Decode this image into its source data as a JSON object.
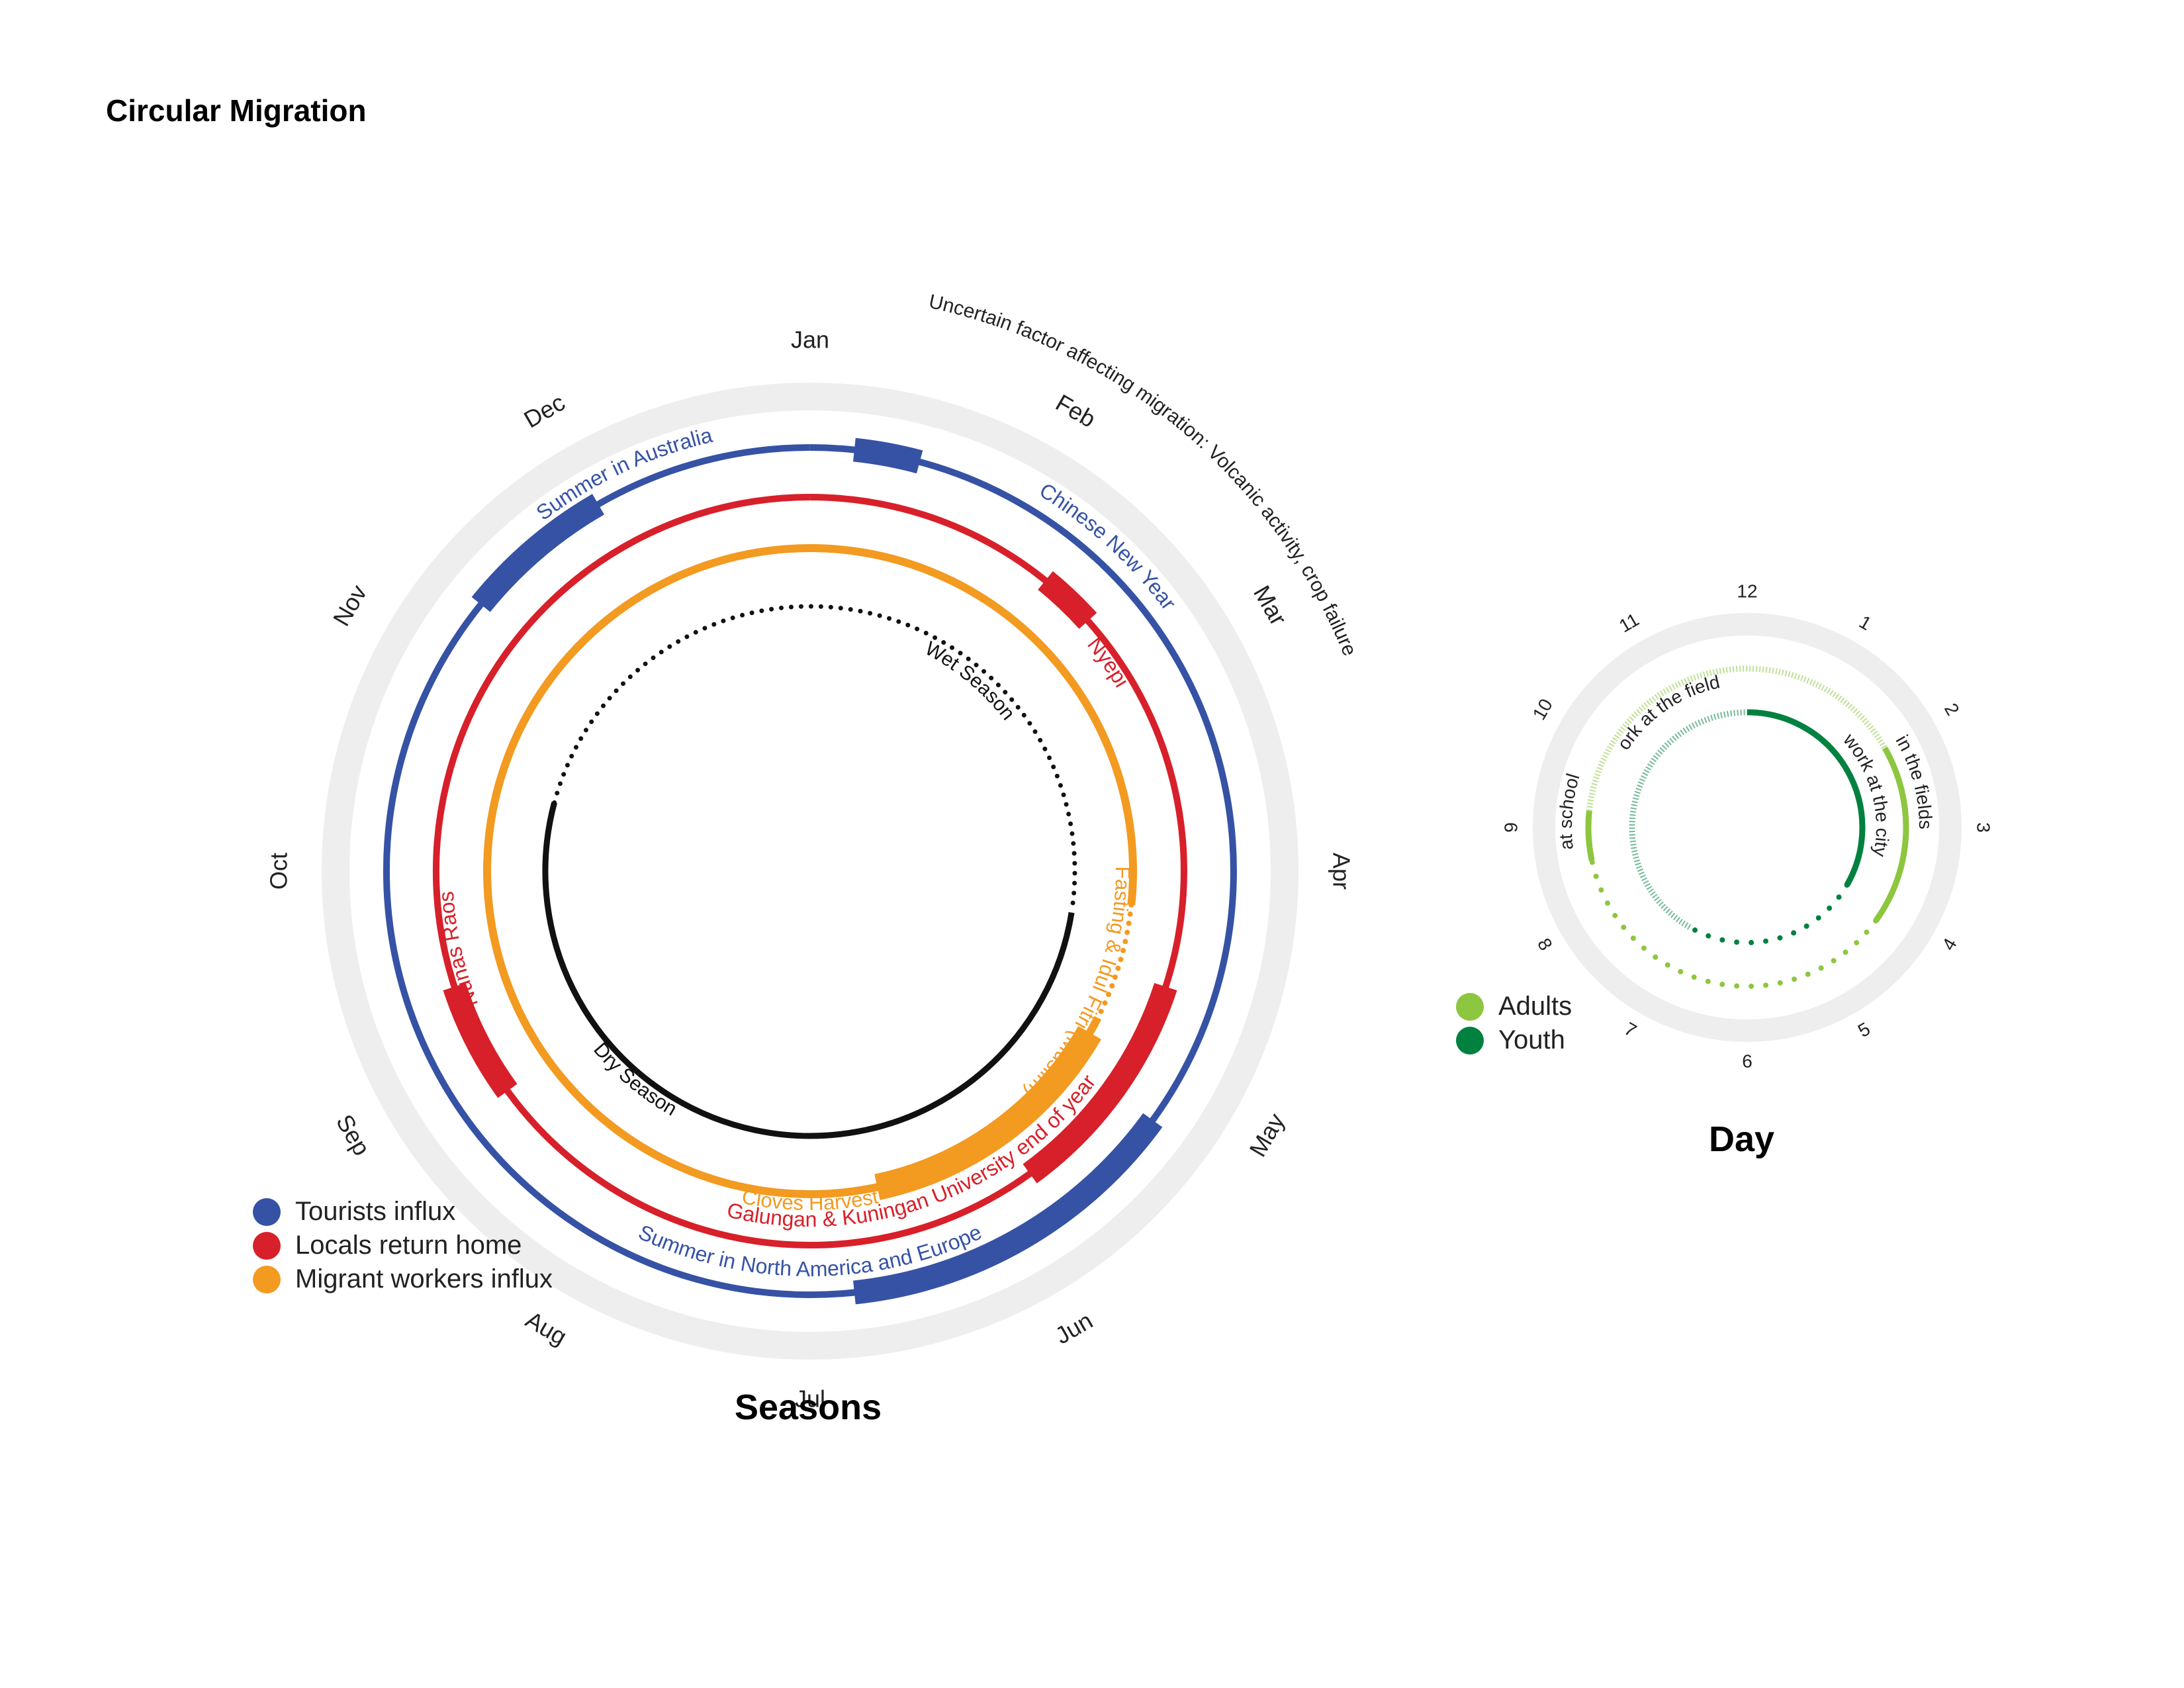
{
  "title": "Circular Migration",
  "chart_data": [
    {
      "type": "radial-calendar",
      "title": "Seasons",
      "months": [
        "Jan",
        "Feb",
        "Mar",
        "Apr",
        "May",
        "Jun",
        "Jul",
        "Aug",
        "Sep",
        "Oct",
        "Nov",
        "Dec"
      ],
      "outer_annotation": "Uncertain factor affecting migration: Volcanic activity, crop failure",
      "legend": [
        {
          "label": "Tourists influx",
          "color": "#3652A5"
        },
        {
          "label": "Locals return home",
          "color": "#D7202A"
        },
        {
          "label": "Migrant workers influx",
          "color": "#F39A21"
        }
      ],
      "series": [
        {
          "name": "Tourists influx",
          "color": "#3652A5",
          "events": [
            {
              "label": "Summer in Australia",
              "start_month": 11.3,
              "end_month": 12.0
            },
            {
              "label": "Chinese New Year",
              "start_month": 1.2,
              "end_month": 1.5
            },
            {
              "label": "Summer in North America and Europe",
              "start_month": 5.2,
              "end_month": 6.8
            }
          ]
        },
        {
          "name": "Locals return home",
          "color": "#D7202A",
          "events": [
            {
              "label": "Nyepi",
              "start_month": 2.3,
              "end_month": 2.6
            },
            {
              "label": "Nunas Raos",
              "start_month": 8.8,
              "end_month": 9.4
            },
            {
              "label": "Galungan & Kuningan University end of year",
              "start_month": 4.6,
              "end_month": 5.8
            }
          ]
        },
        {
          "name": "Migrant workers influx",
          "color": "#F39A21",
          "events": [
            {
              "label": "Cloves Harvest",
              "start_month": 5.0,
              "end_month": 6.6
            },
            {
              "label": "Fasting & Idul Fitri (Muslim)",
              "start_month": 4.2,
              "end_month": 4.9,
              "style": "dotted"
            }
          ]
        }
      ],
      "seasons": [
        {
          "label": "Wet Season",
          "start_month": 10.5,
          "end_month": 4.3,
          "style": "dotted"
        },
        {
          "label": "Dry Season",
          "start_month": 4.3,
          "end_month": 10.5,
          "style": "solid"
        }
      ]
    },
    {
      "type": "radial-clock",
      "title": "Day",
      "hours": [
        "12",
        "1",
        "2",
        "3",
        "4",
        "5",
        "6",
        "7",
        "8",
        "9",
        "10",
        "11"
      ],
      "legend": [
        {
          "label": "Adults",
          "color": "#8DC63F"
        },
        {
          "label": "Youth",
          "color": "#00813F"
        }
      ],
      "series": [
        {
          "name": "Adults",
          "color": "#8DC63F",
          "activities": [
            {
              "label": "in the fields",
              "start_hour": 2.0,
              "end_hour": 4.2,
              "style": "solid"
            },
            {
              "label": "work at the fields",
              "start_hour": 9.2,
              "end_hour": 14.0,
              "style": "hatched"
            },
            {
              "label": "at school",
              "start_hour": 8.6,
              "end_hour": 9.2,
              "style": "solid"
            },
            {
              "label": "",
              "start_hour": 4.2,
              "end_hour": 8.6,
              "style": "dotted"
            }
          ]
        },
        {
          "name": "Youth",
          "color": "#00813F",
          "activities": [
            {
              "label": "work at the city",
              "start_hour": 12.0,
              "end_hour": 16.0,
              "style": "solid"
            },
            {
              "label": "",
              "start_hour": 19.0,
              "end_hour": 24.0,
              "style": "hatched"
            },
            {
              "label": "",
              "start_hour": 16.0,
              "end_hour": 19.0,
              "style": "dotted"
            }
          ]
        }
      ]
    }
  ]
}
